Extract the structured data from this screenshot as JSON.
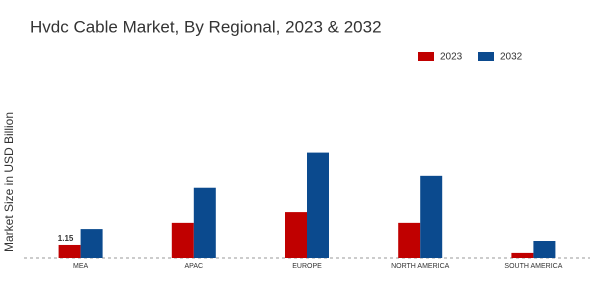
{
  "chart_data": {
    "type": "bar",
    "title": "Hvdc Cable Market, By Regional, 2023 & 2032",
    "y_label": "Market Size in USD Billion",
    "categories": [
      "MEA",
      "APAC",
      "EUROPE",
      "NORTH AMERICA",
      "SOUTH AMERICA"
    ],
    "series": [
      {
        "name": "2023",
        "color": "#c00000",
        "values": [
          1.15,
          3.1,
          4.05,
          3.1,
          0.45
        ],
        "value_labels": [
          "1.15",
          null,
          null,
          null,
          null
        ]
      },
      {
        "name": "2032",
        "color": "#0b4a8e",
        "values": [
          2.55,
          6.2,
          9.3,
          7.25,
          1.5
        ]
      }
    ],
    "ylim": [
      0,
      12
    ]
  }
}
